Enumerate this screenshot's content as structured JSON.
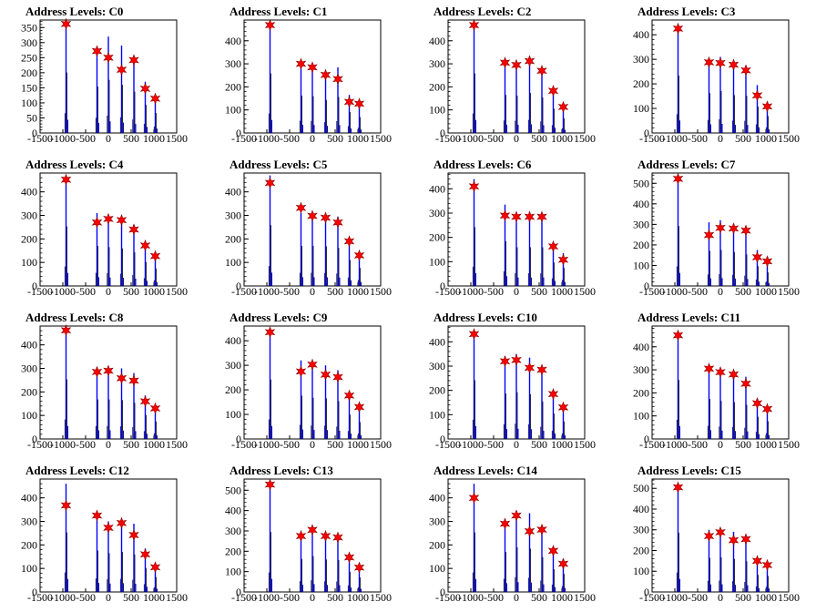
{
  "x_ticks": [
    "-1500",
    "-1000",
    "-500",
    "0",
    "500",
    "1000",
    "1500"
  ],
  "colors": {
    "histogram": "#0000ff",
    "marker": "#ff0000",
    "axis": "#000000"
  },
  "chart_data": [
    {
      "type": "bar",
      "title": "Address Levels: C0",
      "xlim": [
        -1500,
        1500
      ],
      "ylim": [
        0,
        375
      ],
      "yticks": [
        0,
        50,
        100,
        150,
        200,
        250,
        300,
        350
      ],
      "peaks": [
        {
          "x": -930,
          "y": 365
        },
        {
          "x": -250,
          "y": 280
        },
        {
          "x": 0,
          "y": 320
        },
        {
          "x": 290,
          "y": 290
        },
        {
          "x": 560,
          "y": 250
        },
        {
          "x": 810,
          "y": 170
        },
        {
          "x": 1030,
          "y": 120
        }
      ],
      "markers": [
        {
          "x": -930,
          "y": 362
        },
        {
          "x": -250,
          "y": 272
        },
        {
          "x": 0,
          "y": 250
        },
        {
          "x": 290,
          "y": 210
        },
        {
          "x": 560,
          "y": 242
        },
        {
          "x": 810,
          "y": 147
        },
        {
          "x": 1030,
          "y": 114
        }
      ]
    },
    {
      "type": "bar",
      "title": "Address Levels: C1",
      "xlim": [
        -1500,
        1500
      ],
      "ylim": [
        0,
        490
      ],
      "yticks": [
        0,
        100,
        200,
        300,
        400
      ],
      "peaks": [
        {
          "x": -930,
          "y": 470
        },
        {
          "x": -250,
          "y": 295
        },
        {
          "x": 0,
          "y": 290
        },
        {
          "x": 290,
          "y": 260
        },
        {
          "x": 560,
          "y": 285
        },
        {
          "x": 810,
          "y": 165
        },
        {
          "x": 1030,
          "y": 125
        }
      ],
      "markers": [
        {
          "x": -930,
          "y": 468
        },
        {
          "x": -250,
          "y": 300
        },
        {
          "x": 0,
          "y": 285
        },
        {
          "x": 290,
          "y": 252
        },
        {
          "x": 560,
          "y": 234
        },
        {
          "x": 810,
          "y": 135
        },
        {
          "x": 1030,
          "y": 127
        }
      ]
    },
    {
      "type": "bar",
      "title": "Address Levels: C2",
      "xlim": [
        -1500,
        1500
      ],
      "ylim": [
        0,
        490
      ],
      "yticks": [
        0,
        100,
        200,
        300,
        400
      ],
      "peaks": [
        {
          "x": -930,
          "y": 470
        },
        {
          "x": -250,
          "y": 300
        },
        {
          "x": 0,
          "y": 295
        },
        {
          "x": 290,
          "y": 315
        },
        {
          "x": 560,
          "y": 280
        },
        {
          "x": 810,
          "y": 190
        },
        {
          "x": 1030,
          "y": 115
        }
      ],
      "markers": [
        {
          "x": -930,
          "y": 468
        },
        {
          "x": -250,
          "y": 305
        },
        {
          "x": 0,
          "y": 295
        },
        {
          "x": 290,
          "y": 312
        },
        {
          "x": 560,
          "y": 270
        },
        {
          "x": 810,
          "y": 183
        },
        {
          "x": 1030,
          "y": 113
        }
      ]
    },
    {
      "type": "bar",
      "title": "Address Levels: C3",
      "xlim": [
        -1500,
        1500
      ],
      "ylim": [
        0,
        460
      ],
      "yticks": [
        0,
        100,
        200,
        300,
        400
      ],
      "peaks": [
        {
          "x": -930,
          "y": 425
        },
        {
          "x": -250,
          "y": 295
        },
        {
          "x": 0,
          "y": 310
        },
        {
          "x": 290,
          "y": 280
        },
        {
          "x": 560,
          "y": 275
        },
        {
          "x": 810,
          "y": 195
        },
        {
          "x": 1030,
          "y": 125
        }
      ],
      "markers": [
        {
          "x": -930,
          "y": 425
        },
        {
          "x": -250,
          "y": 288
        },
        {
          "x": 0,
          "y": 285
        },
        {
          "x": 290,
          "y": 278
        },
        {
          "x": 560,
          "y": 255
        },
        {
          "x": 810,
          "y": 153
        },
        {
          "x": 1030,
          "y": 108
        }
      ]
    },
    {
      "type": "bar",
      "title": "Address Levels: C4",
      "xlim": [
        -1500,
        1500
      ],
      "ylim": [
        0,
        480
      ],
      "yticks": [
        0,
        100,
        200,
        300,
        400
      ],
      "peaks": [
        {
          "x": -930,
          "y": 460
        },
        {
          "x": -250,
          "y": 310
        },
        {
          "x": 0,
          "y": 300
        },
        {
          "x": 290,
          "y": 290
        },
        {
          "x": 560,
          "y": 260
        },
        {
          "x": 810,
          "y": 185
        },
        {
          "x": 1030,
          "y": 135
        }
      ],
      "markers": [
        {
          "x": -930,
          "y": 452
        },
        {
          "x": -250,
          "y": 270
        },
        {
          "x": 0,
          "y": 285
        },
        {
          "x": 290,
          "y": 280
        },
        {
          "x": 560,
          "y": 240
        },
        {
          "x": 810,
          "y": 172
        },
        {
          "x": 1030,
          "y": 127
        }
      ]
    },
    {
      "type": "bar",
      "title": "Address Levels: C5",
      "xlim": [
        -1500,
        1500
      ],
      "ylim": [
        0,
        480
      ],
      "yticks": [
        0,
        100,
        200,
        300,
        400
      ],
      "peaks": [
        {
          "x": -930,
          "y": 470
        },
        {
          "x": -250,
          "y": 310
        },
        {
          "x": 0,
          "y": 310
        },
        {
          "x": 290,
          "y": 305
        },
        {
          "x": 560,
          "y": 295
        },
        {
          "x": 810,
          "y": 200
        },
        {
          "x": 1030,
          "y": 140
        }
      ],
      "markers": [
        {
          "x": -930,
          "y": 438
        },
        {
          "x": -250,
          "y": 332
        },
        {
          "x": 0,
          "y": 298
        },
        {
          "x": 290,
          "y": 290
        },
        {
          "x": 560,
          "y": 270
        },
        {
          "x": 810,
          "y": 190
        },
        {
          "x": 1030,
          "y": 130
        }
      ]
    },
    {
      "type": "bar",
      "title": "Address Levels: C6",
      "xlim": [
        -1500,
        1500
      ],
      "ylim": [
        0,
        465
      ],
      "yticks": [
        0,
        100,
        200,
        300,
        400
      ],
      "peaks": [
        {
          "x": -930,
          "y": 440
        },
        {
          "x": -250,
          "y": 335
        },
        {
          "x": 0,
          "y": 290
        },
        {
          "x": 290,
          "y": 290
        },
        {
          "x": 560,
          "y": 290
        },
        {
          "x": 810,
          "y": 175
        },
        {
          "x": 1030,
          "y": 135
        }
      ],
      "markers": [
        {
          "x": -930,
          "y": 410
        },
        {
          "x": -250,
          "y": 290
        },
        {
          "x": 0,
          "y": 285
        },
        {
          "x": 290,
          "y": 285
        },
        {
          "x": 560,
          "y": 285
        },
        {
          "x": 810,
          "y": 163
        },
        {
          "x": 1030,
          "y": 108
        }
      ]
    },
    {
      "type": "bar",
      "title": "Address Levels: C7",
      "xlim": [
        -1500,
        1500
      ],
      "ylim": [
        0,
        550
      ],
      "yticks": [
        0,
        100,
        200,
        300,
        400,
        500
      ],
      "peaks": [
        {
          "x": -930,
          "y": 530
        },
        {
          "x": -250,
          "y": 310
        },
        {
          "x": 0,
          "y": 320
        },
        {
          "x": 290,
          "y": 300
        },
        {
          "x": 560,
          "y": 280
        },
        {
          "x": 810,
          "y": 175
        },
        {
          "x": 1030,
          "y": 120
        }
      ],
      "markers": [
        {
          "x": -930,
          "y": 522
        },
        {
          "x": -250,
          "y": 248
        },
        {
          "x": 0,
          "y": 283
        },
        {
          "x": 290,
          "y": 280
        },
        {
          "x": 560,
          "y": 270
        },
        {
          "x": 810,
          "y": 140
        },
        {
          "x": 1030,
          "y": 120
        }
      ]
    },
    {
      "type": "bar",
      "title": "Address Levels: C8",
      "xlim": [
        -1500,
        1500
      ],
      "ylim": [
        0,
        480
      ],
      "yticks": [
        0,
        100,
        200,
        300,
        400
      ],
      "peaks": [
        {
          "x": -930,
          "y": 460
        },
        {
          "x": -250,
          "y": 305
        },
        {
          "x": 0,
          "y": 305
        },
        {
          "x": 290,
          "y": 300
        },
        {
          "x": 560,
          "y": 280
        },
        {
          "x": 810,
          "y": 185
        },
        {
          "x": 1030,
          "y": 135
        }
      ],
      "markers": [
        {
          "x": -930,
          "y": 462
        },
        {
          "x": -250,
          "y": 285
        },
        {
          "x": 0,
          "y": 290
        },
        {
          "x": 290,
          "y": 258
        },
        {
          "x": 560,
          "y": 248
        },
        {
          "x": 810,
          "y": 160
        },
        {
          "x": 1030,
          "y": 130
        }
      ]
    },
    {
      "type": "bar",
      "title": "Address Levels: C9",
      "xlim": [
        -1500,
        1500
      ],
      "ylim": [
        0,
        460
      ],
      "yticks": [
        0,
        100,
        200,
        300,
        400
      ],
      "peaks": [
        {
          "x": -930,
          "y": 440
        },
        {
          "x": -250,
          "y": 320
        },
        {
          "x": 0,
          "y": 305
        },
        {
          "x": 290,
          "y": 300
        },
        {
          "x": 560,
          "y": 280
        },
        {
          "x": 810,
          "y": 180
        },
        {
          "x": 1030,
          "y": 125
        }
      ],
      "markers": [
        {
          "x": -930,
          "y": 435
        },
        {
          "x": -250,
          "y": 275
        },
        {
          "x": 0,
          "y": 303
        },
        {
          "x": 290,
          "y": 262
        },
        {
          "x": 560,
          "y": 252
        },
        {
          "x": 810,
          "y": 177
        },
        {
          "x": 1030,
          "y": 130
        }
      ]
    },
    {
      "type": "bar",
      "title": "Address Levels: C10",
      "xlim": [
        -1500,
        1500
      ],
      "ylim": [
        0,
        465
      ],
      "yticks": [
        0,
        100,
        200,
        300,
        400
      ],
      "peaks": [
        {
          "x": -930,
          "y": 440
        },
        {
          "x": -250,
          "y": 340
        },
        {
          "x": 0,
          "y": 350
        },
        {
          "x": 290,
          "y": 335
        },
        {
          "x": 560,
          "y": 280
        },
        {
          "x": 810,
          "y": 190
        },
        {
          "x": 1030,
          "y": 130
        }
      ],
      "markers": [
        {
          "x": -930,
          "y": 432
        },
        {
          "x": -250,
          "y": 320
        },
        {
          "x": 0,
          "y": 325
        },
        {
          "x": 290,
          "y": 293
        },
        {
          "x": 560,
          "y": 285
        },
        {
          "x": 810,
          "y": 185
        },
        {
          "x": 1030,
          "y": 130
        }
      ]
    },
    {
      "type": "bar",
      "title": "Address Levels: C11",
      "xlim": [
        -1500,
        1500
      ],
      "ylim": [
        0,
        490
      ],
      "yticks": [
        0,
        100,
        200,
        300,
        400
      ],
      "peaks": [
        {
          "x": -930,
          "y": 465
        },
        {
          "x": -250,
          "y": 315
        },
        {
          "x": 0,
          "y": 300
        },
        {
          "x": 290,
          "y": 290
        },
        {
          "x": 560,
          "y": 270
        },
        {
          "x": 810,
          "y": 175
        },
        {
          "x": 1030,
          "y": 140
        }
      ],
      "markers": [
        {
          "x": -930,
          "y": 450
        },
        {
          "x": -250,
          "y": 305
        },
        {
          "x": 0,
          "y": 290
        },
        {
          "x": 290,
          "y": 280
        },
        {
          "x": 560,
          "y": 240
        },
        {
          "x": 810,
          "y": 155
        },
        {
          "x": 1030,
          "y": 130
        }
      ]
    },
    {
      "type": "bar",
      "title": "Address Levels: C12",
      "xlim": [
        -1500,
        1500
      ],
      "ylim": [
        0,
        480
      ],
      "yticks": [
        0,
        100,
        200,
        300,
        400
      ],
      "peaks": [
        {
          "x": -930,
          "y": 460
        },
        {
          "x": -250,
          "y": 320
        },
        {
          "x": 0,
          "y": 300
        },
        {
          "x": 290,
          "y": 310
        },
        {
          "x": 560,
          "y": 290
        },
        {
          "x": 810,
          "y": 185
        },
        {
          "x": 1030,
          "y": 115
        }
      ],
      "markers": [
        {
          "x": -930,
          "y": 368
        },
        {
          "x": -250,
          "y": 325
        },
        {
          "x": 0,
          "y": 273
        },
        {
          "x": 290,
          "y": 293
        },
        {
          "x": 560,
          "y": 242
        },
        {
          "x": 810,
          "y": 160
        },
        {
          "x": 1030,
          "y": 105
        }
      ]
    },
    {
      "type": "bar",
      "title": "Address Levels: C13",
      "xlim": [
        -1500,
        1500
      ],
      "ylim": [
        0,
        555
      ],
      "yticks": [
        0,
        100,
        200,
        300,
        400,
        500
      ],
      "peaks": [
        {
          "x": -930,
          "y": 535
        },
        {
          "x": -250,
          "y": 295
        },
        {
          "x": 0,
          "y": 320
        },
        {
          "x": 290,
          "y": 290
        },
        {
          "x": 560,
          "y": 285
        },
        {
          "x": 810,
          "y": 180
        },
        {
          "x": 1030,
          "y": 130
        }
      ],
      "markers": [
        {
          "x": -930,
          "y": 528
        },
        {
          "x": -250,
          "y": 275
        },
        {
          "x": 0,
          "y": 305
        },
        {
          "x": 290,
          "y": 275
        },
        {
          "x": 560,
          "y": 268
        },
        {
          "x": 810,
          "y": 170
        },
        {
          "x": 1030,
          "y": 120
        }
      ]
    },
    {
      "type": "bar",
      "title": "Address Levels: C14",
      "xlim": [
        -1500,
        1500
      ],
      "ylim": [
        0,
        480
      ],
      "yticks": [
        0,
        100,
        200,
        300,
        400
      ],
      "peaks": [
        {
          "x": -930,
          "y": 460
        },
        {
          "x": -250,
          "y": 310
        },
        {
          "x": 0,
          "y": 345
        },
        {
          "x": 290,
          "y": 335
        },
        {
          "x": 560,
          "y": 270
        },
        {
          "x": 810,
          "y": 175
        },
        {
          "x": 1030,
          "y": 140
        }
      ],
      "markers": [
        {
          "x": -930,
          "y": 400
        },
        {
          "x": -250,
          "y": 290
        },
        {
          "x": 0,
          "y": 325
        },
        {
          "x": 290,
          "y": 258
        },
        {
          "x": 560,
          "y": 265
        },
        {
          "x": 810,
          "y": 175
        },
        {
          "x": 1030,
          "y": 120
        }
      ]
    },
    {
      "type": "bar",
      "title": "Address Levels: C15",
      "xlim": [
        -1500,
        1500
      ],
      "ylim": [
        0,
        545
      ],
      "yticks": [
        0,
        100,
        200,
        300,
        400,
        500
      ],
      "peaks": [
        {
          "x": -930,
          "y": 520
        },
        {
          "x": -250,
          "y": 300
        },
        {
          "x": 0,
          "y": 305
        },
        {
          "x": 290,
          "y": 290
        },
        {
          "x": 560,
          "y": 270
        },
        {
          "x": 810,
          "y": 150
        },
        {
          "x": 1030,
          "y": 140
        }
      ],
      "markers": [
        {
          "x": -930,
          "y": 505
        },
        {
          "x": -250,
          "y": 270
        },
        {
          "x": 0,
          "y": 288
        },
        {
          "x": 290,
          "y": 250
        },
        {
          "x": 560,
          "y": 255
        },
        {
          "x": 810,
          "y": 150
        },
        {
          "x": 1030,
          "y": 130
        }
      ]
    }
  ]
}
